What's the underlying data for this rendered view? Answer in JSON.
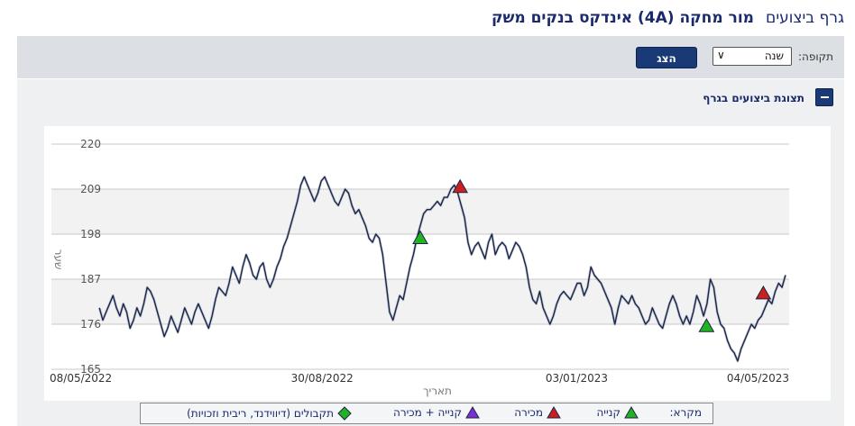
{
  "header": {
    "title_prefix": "גרף ביצועים",
    "title_main": "מור מחקה (4A) אינדקס בנקים משק"
  },
  "toolbar": {
    "period_label": "תקופה:",
    "period_value": "שנה",
    "show_button": "הצג"
  },
  "panel": {
    "toggle_label": "תצוגת ביצועים בגרף"
  },
  "legend": {
    "title": "מקרא:",
    "buy": "קנייה",
    "sell": "מכירה",
    "buy_sell": "קנייה + מכירה",
    "receipts": "תקבולים (דיווידנד, ריבית וזכויות)"
  },
  "colors": {
    "buy": "#22b322",
    "sell": "#cc1f1f",
    "buy_sell": "#7b2fd0",
    "receipts": "#22b322",
    "line": "#1a2548"
  },
  "chart_data": {
    "type": "line",
    "xlabel": "תאריך",
    "ylabel": "שער",
    "ylim": [
      165,
      220
    ],
    "yticks": [
      165,
      176,
      187,
      198,
      209,
      220
    ],
    "xticks": [
      "08/05/2022",
      "30/08/2022",
      "03/01/2023",
      "04/05/2023"
    ],
    "x_start": "08/05/2022",
    "x_end": "04/05/2023",
    "grid": true,
    "series": [
      {
        "values": [
          180,
          177,
          179,
          181,
          183,
          180,
          178,
          181,
          179,
          175,
          177,
          180,
          178,
          181,
          185,
          184,
          182,
          179,
          176,
          173,
          175,
          178,
          176,
          174,
          177,
          180,
          178,
          176,
          179,
          181,
          179,
          177,
          175,
          178,
          182,
          185,
          184,
          183,
          186,
          190,
          188,
          186,
          190,
          193,
          191,
          188,
          187,
          190,
          191,
          187,
          185,
          187,
          190,
          192,
          195,
          197,
          200,
          203,
          206,
          210,
          212,
          210,
          208,
          206,
          208,
          211,
          212,
          210,
          208,
          206,
          205,
          207,
          209,
          208,
          205,
          203,
          204,
          202,
          200,
          197,
          196,
          198,
          197,
          193,
          186,
          179,
          177,
          180,
          183,
          182,
          186,
          190,
          193,
          197,
          200,
          203,
          204,
          204,
          205,
          206,
          205,
          207,
          207,
          209,
          210,
          208,
          205,
          202,
          196,
          193,
          195,
          196,
          194,
          192,
          196,
          198,
          193,
          195,
          196,
          195,
          192,
          194,
          196,
          195,
          193,
          190,
          185,
          182,
          181,
          184,
          180,
          178,
          176,
          178,
          181,
          183,
          184,
          183,
          182,
          184,
          186,
          186,
          183,
          185,
          190,
          188,
          187,
          186,
          184,
          182,
          180,
          176,
          180,
          183,
          182,
          181,
          183,
          181,
          180,
          178,
          176,
          177,
          180,
          178,
          176,
          175,
          178,
          181,
          183,
          181,
          178,
          176,
          178,
          176,
          179,
          183,
          181,
          178,
          181,
          187,
          185,
          179,
          176,
          175,
          172,
          170,
          169,
          167,
          170,
          172,
          174,
          176,
          175,
          177,
          178,
          180,
          182,
          181,
          184,
          186,
          185,
          188
        ]
      }
    ],
    "markers": [
      {
        "kind": "buy",
        "x_frac": 0.5,
        "y": 197
      },
      {
        "kind": "sell",
        "x_frac": 0.554,
        "y": 209.5
      },
      {
        "kind": "buy",
        "x_frac": 0.888,
        "y": 175.5
      },
      {
        "kind": "sell",
        "x_frac": 0.965,
        "y": 183.5
      }
    ]
  }
}
